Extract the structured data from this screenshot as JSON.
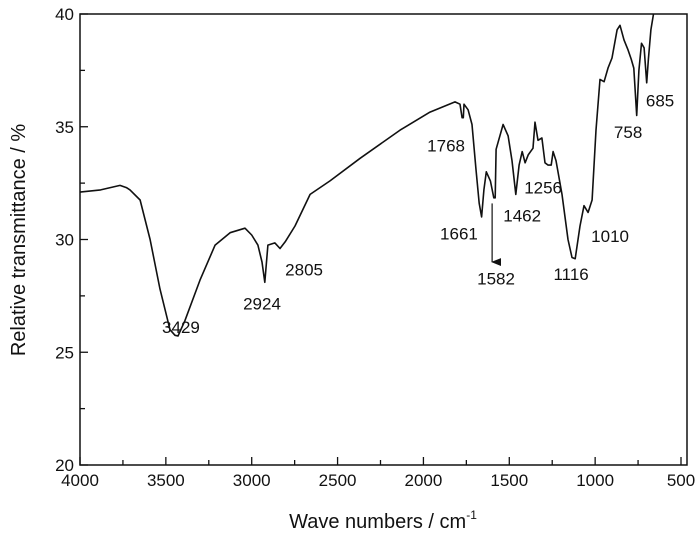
{
  "chart_data": {
    "type": "line",
    "title": "",
    "xlabel": "Wave numbers / cm",
    "xlabel_superscript": "-1",
    "ylabel": "Relative transmittance / %",
    "xlim": [
      4000,
      500
    ],
    "ylim": [
      20,
      40
    ],
    "x_reversed": true,
    "grid": false,
    "x_ticks": [
      4000,
      3500,
      3000,
      2500,
      2000,
      1500,
      1000,
      500
    ],
    "x_tick_labels": [
      "4000",
      "3500",
      "3000",
      "2500",
      "2000",
      "1500",
      "1000",
      "500"
    ],
    "y_ticks": [
      20,
      25,
      30,
      35,
      40
    ],
    "y_tick_labels": [
      "20",
      "25",
      "30",
      "35",
      "40"
    ],
    "series": [
      {
        "name": "spectrum",
        "color": "#111111",
        "points": [
          [
            4000,
            32.1
          ],
          [
            3880,
            32.2
          ],
          [
            3767,
            32.4
          ],
          [
            3730,
            32.3
          ],
          [
            3709,
            32.2
          ],
          [
            3650,
            31.75
          ],
          [
            3592,
            30.0
          ],
          [
            3534,
            27.8
          ],
          [
            3476,
            26.0
          ],
          [
            3447,
            25.75
          ],
          [
            3429,
            25.72
          ],
          [
            3389,
            26.4
          ],
          [
            3301,
            28.2
          ],
          [
            3213,
            29.75
          ],
          [
            3126,
            30.3
          ],
          [
            3039,
            30.5
          ],
          [
            3000,
            30.2
          ],
          [
            2964,
            29.75
          ],
          [
            2940,
            29.0
          ],
          [
            2924,
            28.1
          ],
          [
            2906,
            29.75
          ],
          [
            2865,
            29.85
          ],
          [
            2835,
            29.6
          ],
          [
            2805,
            29.9
          ],
          [
            2748,
            30.6
          ],
          [
            2660,
            32.0
          ],
          [
            2544,
            32.6
          ],
          [
            2369,
            33.6
          ],
          [
            2136,
            34.85
          ],
          [
            1962,
            35.65
          ],
          [
            1816,
            36.1
          ],
          [
            1787,
            36.0
          ],
          [
            1775,
            35.4
          ],
          [
            1768,
            35.4
          ],
          [
            1764,
            36.0
          ],
          [
            1740,
            35.75
          ],
          [
            1717,
            35.1
          ],
          [
            1694,
            33.1
          ],
          [
            1675,
            31.6
          ],
          [
            1661,
            31.0
          ],
          [
            1648,
            32.2
          ],
          [
            1634,
            33.0
          ],
          [
            1610,
            32.6
          ],
          [
            1590,
            31.85
          ],
          [
            1582,
            31.85
          ],
          [
            1577,
            34.0
          ],
          [
            1536,
            35.1
          ],
          [
            1507,
            34.6
          ],
          [
            1484,
            33.5
          ],
          [
            1462,
            32.0
          ],
          [
            1443,
            33.3
          ],
          [
            1425,
            33.9
          ],
          [
            1408,
            33.4
          ],
          [
            1390,
            33.75
          ],
          [
            1362,
            34.05
          ],
          [
            1350,
            35.2
          ],
          [
            1333,
            34.4
          ],
          [
            1310,
            34.5
          ],
          [
            1292,
            33.4
          ],
          [
            1274,
            33.3
          ],
          [
            1256,
            33.3
          ],
          [
            1245,
            33.9
          ],
          [
            1228,
            33.5
          ],
          [
            1193,
            32.0
          ],
          [
            1158,
            30.0
          ],
          [
            1135,
            29.2
          ],
          [
            1116,
            29.15
          ],
          [
            1088,
            30.6
          ],
          [
            1065,
            31.5
          ],
          [
            1041,
            31.2
          ],
          [
            1018,
            31.75
          ],
          [
            995,
            34.85
          ],
          [
            972,
            37.1
          ],
          [
            948,
            37.0
          ],
          [
            925,
            37.6
          ],
          [
            902,
            38.05
          ],
          [
            872,
            39.3
          ],
          [
            855,
            39.5
          ],
          [
            832,
            38.85
          ],
          [
            808,
            38.4
          ],
          [
            790,
            38.0
          ],
          [
            775,
            37.6
          ],
          [
            758,
            35.5
          ],
          [
            745,
            37.5
          ],
          [
            730,
            38.7
          ],
          [
            715,
            38.5
          ],
          [
            700,
            36.95
          ],
          [
            690,
            38.0
          ],
          [
            675,
            39.3
          ],
          [
            660,
            40.0
          ]
        ]
      }
    ],
    "annotations": [
      {
        "text": "3429",
        "x": 3412,
        "y": 25.85
      },
      {
        "text": "2924",
        "x": 2940,
        "y": 26.9
      },
      {
        "text": "2805",
        "x": 2695,
        "y": 28.4
      },
      {
        "text": "1768",
        "x": 1868,
        "y": 33.9
      },
      {
        "text": "1661",
        "x": 1793,
        "y": 30.0
      },
      {
        "text": "1582",
        "x": 1577,
        "y": 28.0,
        "arrow": {
          "x": 1600,
          "from": 31.6,
          "to": 29.0
        }
      },
      {
        "text": "1462",
        "x": 1425,
        "y": 30.8
      },
      {
        "text": "1256",
        "x": 1303,
        "y": 32.05
      },
      {
        "text": "1116",
        "x": 1140,
        "y": 28.2
      },
      {
        "text": "1010",
        "x": 913,
        "y": 29.9
      },
      {
        "text": "758",
        "x": 808,
        "y": 34.5
      },
      {
        "text": "685",
        "x": 622,
        "y": 35.9
      }
    ]
  }
}
